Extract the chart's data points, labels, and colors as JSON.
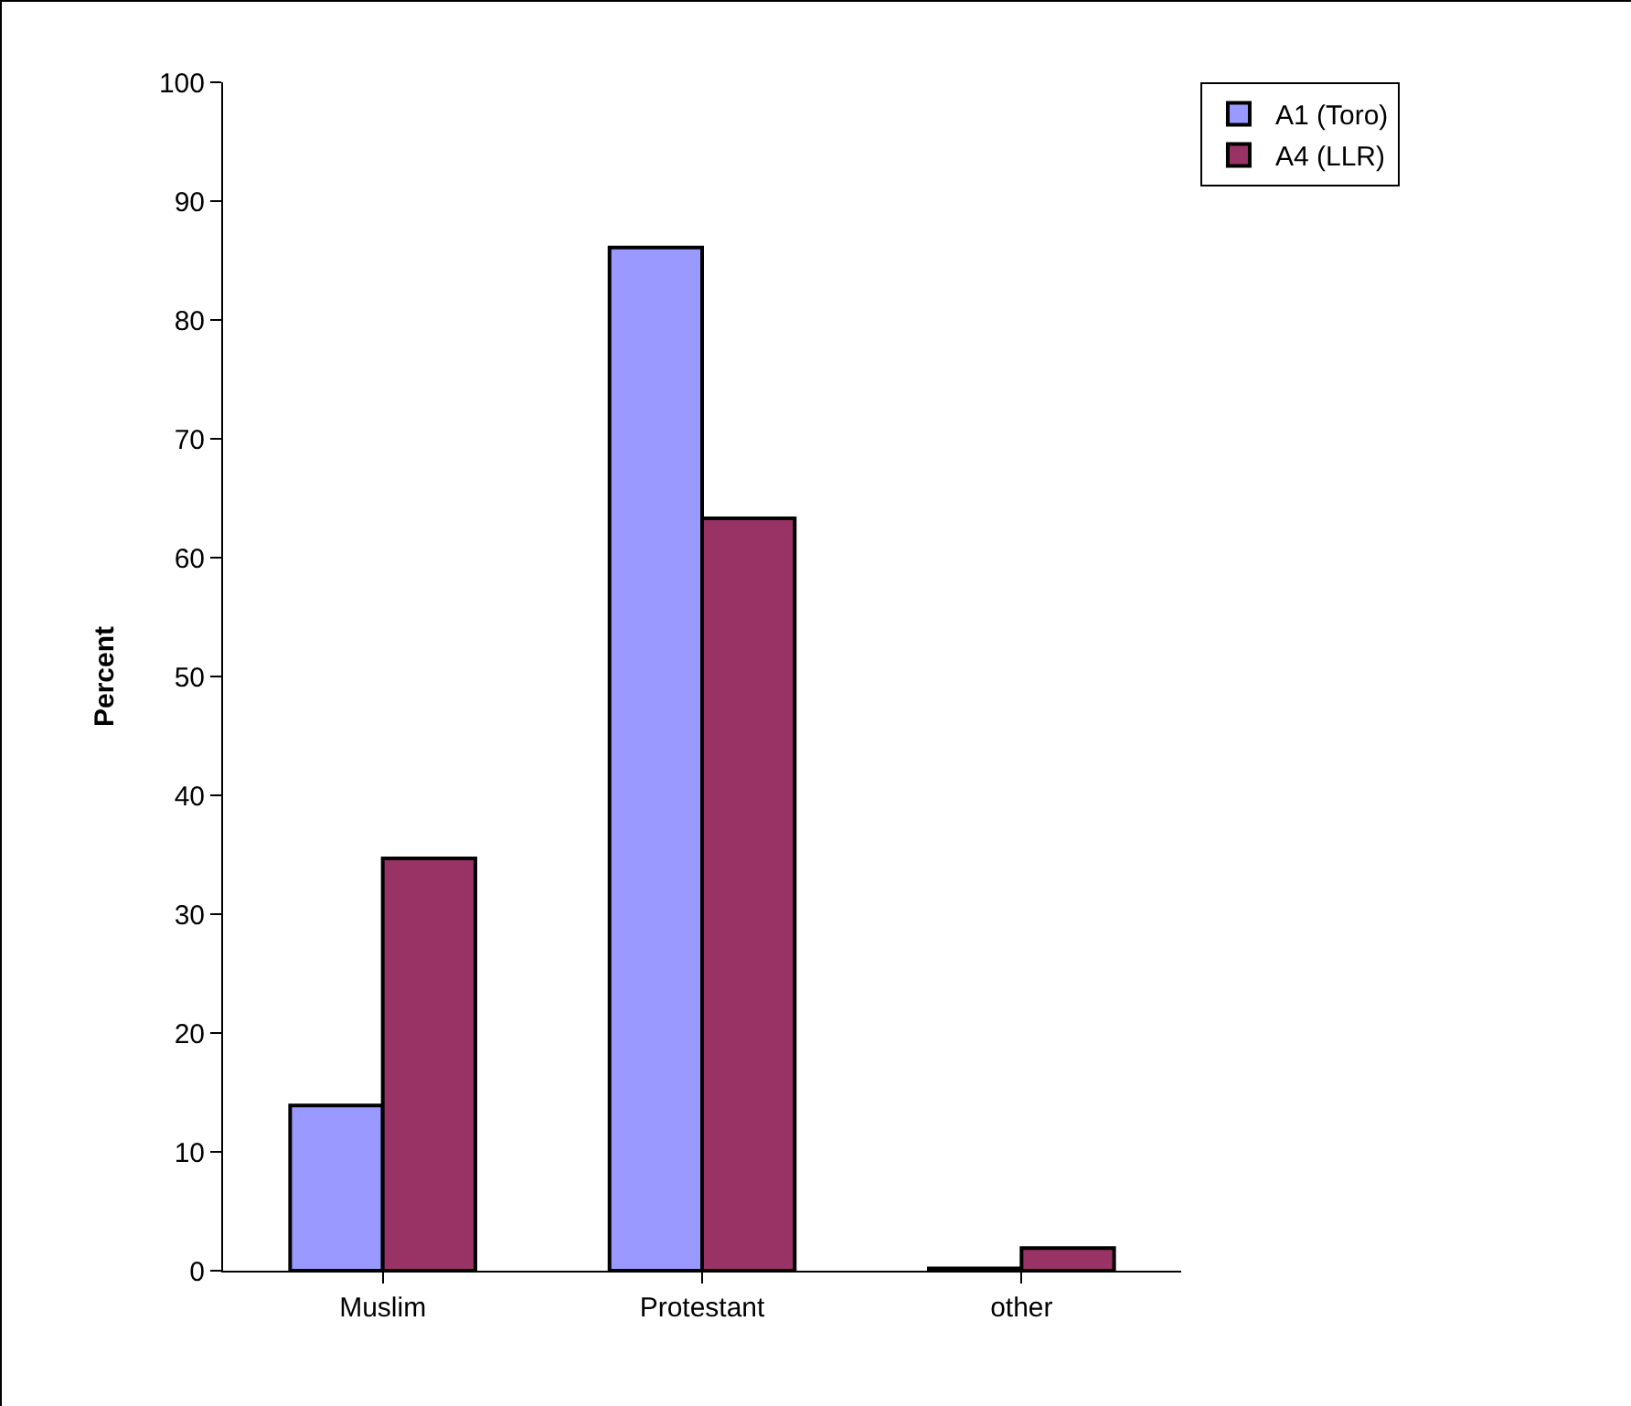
{
  "chart_data": {
    "type": "bar",
    "ylabel": "Percent",
    "categories": [
      "Muslim",
      "Protestant",
      "other"
    ],
    "series": [
      {
        "name": "A1 (Toro)",
        "color": "#9999ff",
        "values": [
          13.9,
          86.1,
          0.2
        ]
      },
      {
        "name": "A4 (LLR)",
        "color": "#993366",
        "values": [
          34.7,
          63.3,
          1.9
        ]
      }
    ],
    "ylim": [
      0,
      100
    ],
    "yticks": [
      0,
      10,
      20,
      30,
      40,
      50,
      60,
      70,
      80,
      90,
      100
    ],
    "grid": false,
    "legend": "top right"
  }
}
